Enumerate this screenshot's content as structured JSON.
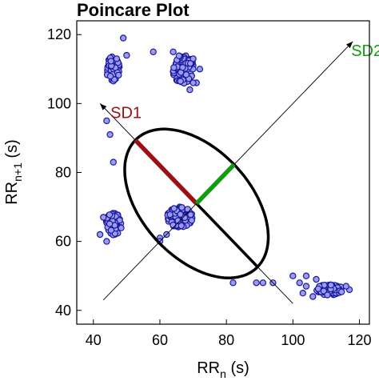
{
  "chart_data": {
    "type": "scatter",
    "title": "Poincare Plot",
    "xlabel": {
      "main": "RR",
      "sub": "n",
      "unit": " (s)"
    },
    "ylabel": {
      "main": "RR",
      "sub": "n+1",
      "unit": " (s)"
    },
    "xlim": [
      35,
      123
    ],
    "ylim": [
      36,
      124
    ],
    "xticks": [
      40,
      60,
      80,
      100,
      120
    ],
    "yticks": [
      40,
      60,
      80,
      100,
      120
    ],
    "grid": false,
    "series": [
      {
        "marker_color": "#9b9bef",
        "edge_color": "#1a1aa0",
        "clusters": [
          {
            "cx": 46,
            "cy": 110,
            "rx": 2.2,
            "ry": 3.6,
            "n": 70,
            "seed": 11
          },
          {
            "cx": 67,
            "cy": 110,
            "rx": 3.2,
            "ry": 4.2,
            "n": 90,
            "seed": 23
          },
          {
            "cx": 46,
            "cy": 65,
            "rx": 2.5,
            "ry": 3.2,
            "n": 60,
            "seed": 37
          },
          {
            "cx": 66,
            "cy": 67,
            "rx": 3.8,
            "ry": 3.0,
            "n": 140,
            "seed": 41
          },
          {
            "cx": 111,
            "cy": 46,
            "rx": 4.0,
            "ry": 1.6,
            "n": 90,
            "seed": 53
          }
        ],
        "points": [
          [
            44,
            95
          ],
          [
            45,
            91
          ],
          [
            46,
            83
          ],
          [
            47,
            113
          ],
          [
            50,
            114
          ],
          [
            49,
            119
          ],
          [
            58,
            115
          ],
          [
            64,
            115
          ],
          [
            62,
            62
          ],
          [
            60,
            61
          ],
          [
            60,
            60
          ],
          [
            71,
            106
          ],
          [
            72,
            110
          ],
          [
            70,
            113
          ],
          [
            69,
            104
          ],
          [
            70,
            106
          ],
          [
            42,
            62
          ],
          [
            44,
            60
          ],
          [
            43,
            67
          ],
          [
            82,
            48
          ],
          [
            89,
            48
          ],
          [
            91,
            48
          ],
          [
            94,
            48
          ],
          [
            100,
            50
          ],
          [
            102,
            48
          ],
          [
            104,
            50
          ],
          [
            104,
            47
          ],
          [
            103,
            45
          ],
          [
            106,
            44
          ],
          [
            107,
            49
          ],
          [
            117,
            46
          ],
          [
            116,
            47
          ]
        ]
      }
    ],
    "identity_line": {
      "from": [
        43,
        43
      ],
      "to": [
        118,
        118
      ]
    },
    "sd1_axis_line": {
      "from": [
        100,
        42
      ],
      "to": [
        42,
        100
      ]
    },
    "ellipse": {
      "center": [
        71,
        71
      ],
      "sd1": 26,
      "sd2": 16
    },
    "sd1": {
      "label": "SD1",
      "color": "#9b1010",
      "from": [
        71,
        71
      ],
      "to": [
        52.6,
        89.4
      ]
    },
    "sd2": {
      "label": "SD2",
      "color": "#109b10",
      "from": [
        71,
        71
      ],
      "to": [
        82.3,
        82.3
      ]
    },
    "black_segment": {
      "from": [
        71,
        71
      ],
      "to": [
        89.4,
        52.6
      ]
    }
  }
}
